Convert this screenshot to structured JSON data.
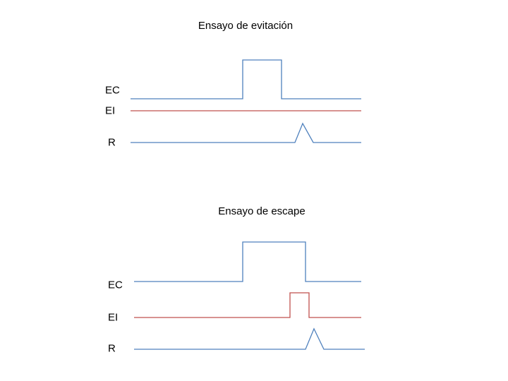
{
  "colors": {
    "blue": "#4f81bd",
    "red": "#c0504d"
  },
  "panels": [
    {
      "title": "Ensayo de evitación",
      "signals": [
        {
          "label": "EC",
          "shape": "pulse",
          "color": "blue"
        },
        {
          "label": "EI",
          "shape": "flat",
          "color": "red"
        },
        {
          "label": "R",
          "shape": "spike",
          "color": "blue"
        }
      ]
    },
    {
      "title": "Ensayo de escape",
      "signals": [
        {
          "label": "EC",
          "shape": "pulse",
          "color": "blue"
        },
        {
          "label": "EI",
          "shape": "pulse",
          "color": "red"
        },
        {
          "label": "R",
          "shape": "spike",
          "color": "blue"
        }
      ]
    }
  ]
}
